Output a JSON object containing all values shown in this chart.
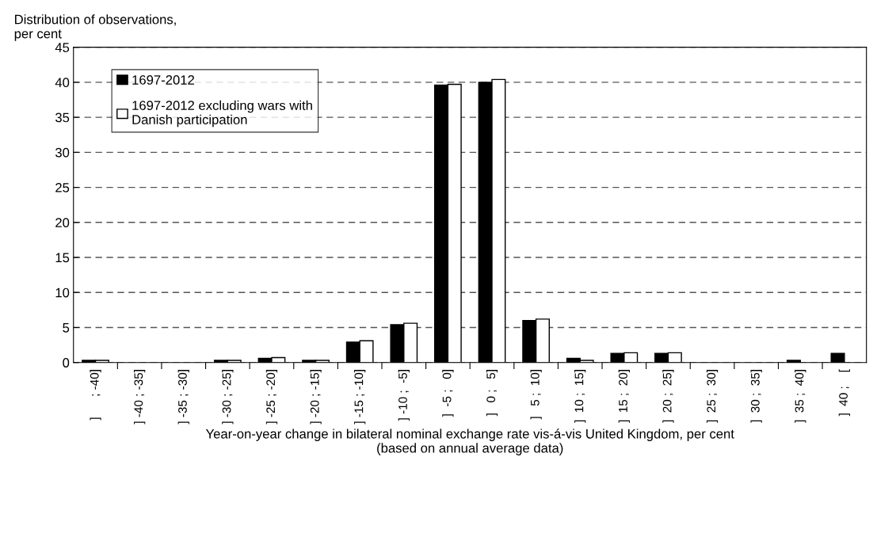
{
  "chart_data": {
    "type": "bar",
    "ylabel": "Distribution of observations,\nper cent",
    "xlabel": "Year-on-year change in bilateral nominal exchange rate vis-á-vis United Kingdom, per cent\n(based on annual average data)",
    "categories": [
      "]      ; -40]",
      "] -40 ; -35]",
      "] -35 ; -30]",
      "] -30 ; -25]",
      "] -25 ; -20]",
      "] -20 ; -15]",
      "] -15 ; -10]",
      "] -10 ;  -5]",
      "]  -5 ;   0]",
      "]   0 ;   5]",
      "]   5 ;  10]",
      "]  10 ;  15]",
      "]  15 ;  20]",
      "]  20 ;  25]",
      "]  25 ;  30]",
      "]  30 ;  35]",
      "]  35 ;  40]",
      "]  40 ;    ["
    ],
    "series": [
      {
        "name": "1697-2012",
        "color": "#000000",
        "values": [
          0.3,
          0,
          0,
          0.3,
          0.6,
          0.3,
          2.9,
          5.4,
          39.6,
          40.0,
          6.0,
          0.6,
          1.3,
          1.3,
          0,
          0,
          0.3,
          1.3
        ]
      },
      {
        "name": "1697-2012 excluding wars with\nDanish participation",
        "color": "#ffffff",
        "values": [
          0.3,
          0,
          0,
          0.3,
          0.7,
          0.3,
          3.1,
          5.6,
          39.7,
          40.4,
          6.2,
          0.3,
          1.4,
          1.4,
          0,
          0,
          0,
          0
        ]
      }
    ],
    "ylim": [
      0,
      45
    ],
    "yticks": [
      0,
      5,
      10,
      15,
      20,
      25,
      30,
      35,
      40,
      45
    ],
    "grid": "y",
    "legend": "top left"
  }
}
